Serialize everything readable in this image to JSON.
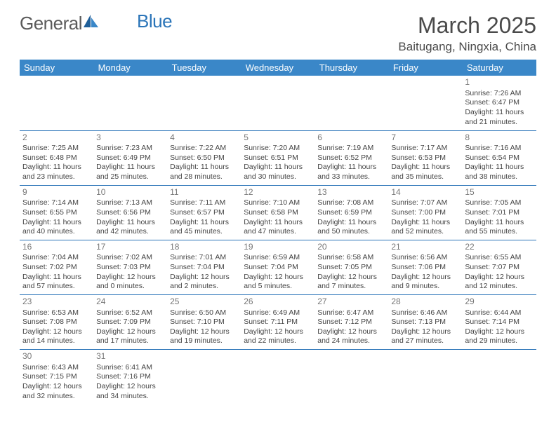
{
  "brand": {
    "part1": "General",
    "part2": "Blue",
    "text_color": "#5a5a5a",
    "accent_color": "#2a74b8"
  },
  "title": "March 2025",
  "location": "Baitugang, Ningxia, China",
  "header_bg": "#3a87c8",
  "header_text_color": "#ffffff",
  "border_color": "#2a74b8",
  "daynum_color": "#777777",
  "cell_text_color": "#444444",
  "background_color": "#ffffff",
  "fonts": {
    "title_size": 32,
    "location_size": 17,
    "header_size": 13,
    "cell_size": 10.5,
    "daynum_size": 12
  },
  "columns": [
    "Sunday",
    "Monday",
    "Tuesday",
    "Wednesday",
    "Thursday",
    "Friday",
    "Saturday"
  ],
  "weeks": [
    [
      null,
      null,
      null,
      null,
      null,
      null,
      {
        "n": "1",
        "sr": "7:26 AM",
        "ss": "6:47 PM",
        "dl": "11 hours and 21 minutes."
      }
    ],
    [
      {
        "n": "2",
        "sr": "7:25 AM",
        "ss": "6:48 PM",
        "dl": "11 hours and 23 minutes."
      },
      {
        "n": "3",
        "sr": "7:23 AM",
        "ss": "6:49 PM",
        "dl": "11 hours and 25 minutes."
      },
      {
        "n": "4",
        "sr": "7:22 AM",
        "ss": "6:50 PM",
        "dl": "11 hours and 28 minutes."
      },
      {
        "n": "5",
        "sr": "7:20 AM",
        "ss": "6:51 PM",
        "dl": "11 hours and 30 minutes."
      },
      {
        "n": "6",
        "sr": "7:19 AM",
        "ss": "6:52 PM",
        "dl": "11 hours and 33 minutes."
      },
      {
        "n": "7",
        "sr": "7:17 AM",
        "ss": "6:53 PM",
        "dl": "11 hours and 35 minutes."
      },
      {
        "n": "8",
        "sr": "7:16 AM",
        "ss": "6:54 PM",
        "dl": "11 hours and 38 minutes."
      }
    ],
    [
      {
        "n": "9",
        "sr": "7:14 AM",
        "ss": "6:55 PM",
        "dl": "11 hours and 40 minutes."
      },
      {
        "n": "10",
        "sr": "7:13 AM",
        "ss": "6:56 PM",
        "dl": "11 hours and 42 minutes."
      },
      {
        "n": "11",
        "sr": "7:11 AM",
        "ss": "6:57 PM",
        "dl": "11 hours and 45 minutes."
      },
      {
        "n": "12",
        "sr": "7:10 AM",
        "ss": "6:58 PM",
        "dl": "11 hours and 47 minutes."
      },
      {
        "n": "13",
        "sr": "7:08 AM",
        "ss": "6:59 PM",
        "dl": "11 hours and 50 minutes."
      },
      {
        "n": "14",
        "sr": "7:07 AM",
        "ss": "7:00 PM",
        "dl": "11 hours and 52 minutes."
      },
      {
        "n": "15",
        "sr": "7:05 AM",
        "ss": "7:01 PM",
        "dl": "11 hours and 55 minutes."
      }
    ],
    [
      {
        "n": "16",
        "sr": "7:04 AM",
        "ss": "7:02 PM",
        "dl": "11 hours and 57 minutes."
      },
      {
        "n": "17",
        "sr": "7:02 AM",
        "ss": "7:03 PM",
        "dl": "12 hours and 0 minutes."
      },
      {
        "n": "18",
        "sr": "7:01 AM",
        "ss": "7:04 PM",
        "dl": "12 hours and 2 minutes."
      },
      {
        "n": "19",
        "sr": "6:59 AM",
        "ss": "7:04 PM",
        "dl": "12 hours and 5 minutes."
      },
      {
        "n": "20",
        "sr": "6:58 AM",
        "ss": "7:05 PM",
        "dl": "12 hours and 7 minutes."
      },
      {
        "n": "21",
        "sr": "6:56 AM",
        "ss": "7:06 PM",
        "dl": "12 hours and 9 minutes."
      },
      {
        "n": "22",
        "sr": "6:55 AM",
        "ss": "7:07 PM",
        "dl": "12 hours and 12 minutes."
      }
    ],
    [
      {
        "n": "23",
        "sr": "6:53 AM",
        "ss": "7:08 PM",
        "dl": "12 hours and 14 minutes."
      },
      {
        "n": "24",
        "sr": "6:52 AM",
        "ss": "7:09 PM",
        "dl": "12 hours and 17 minutes."
      },
      {
        "n": "25",
        "sr": "6:50 AM",
        "ss": "7:10 PM",
        "dl": "12 hours and 19 minutes."
      },
      {
        "n": "26",
        "sr": "6:49 AM",
        "ss": "7:11 PM",
        "dl": "12 hours and 22 minutes."
      },
      {
        "n": "27",
        "sr": "6:47 AM",
        "ss": "7:12 PM",
        "dl": "12 hours and 24 minutes."
      },
      {
        "n": "28",
        "sr": "6:46 AM",
        "ss": "7:13 PM",
        "dl": "12 hours and 27 minutes."
      },
      {
        "n": "29",
        "sr": "6:44 AM",
        "ss": "7:14 PM",
        "dl": "12 hours and 29 minutes."
      }
    ],
    [
      {
        "n": "30",
        "sr": "6:43 AM",
        "ss": "7:15 PM",
        "dl": "12 hours and 32 minutes."
      },
      {
        "n": "31",
        "sr": "6:41 AM",
        "ss": "7:16 PM",
        "dl": "12 hours and 34 minutes."
      },
      null,
      null,
      null,
      null,
      null
    ]
  ],
  "labels": {
    "sunrise": "Sunrise: ",
    "sunset": "Sunset: ",
    "daylight": "Daylight: "
  }
}
